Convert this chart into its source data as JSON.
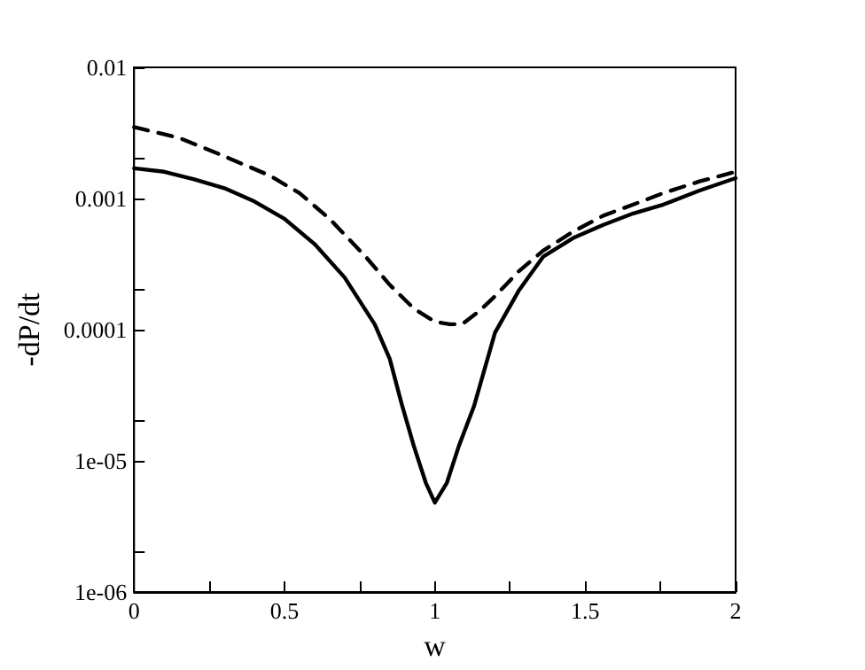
{
  "chart_data": {
    "type": "line",
    "xlabel": "w",
    "ylabel": "-dP/dt",
    "log": "y",
    "marker": "none",
    "xlim": [
      0,
      2
    ],
    "ylim": [
      1e-06,
      0.01
    ],
    "xticks": [
      0,
      {
        "value": 0.25,
        "label": null
      },
      0.5,
      {
        "value": 0.75,
        "label": null
      },
      1,
      {
        "value": 1.25,
        "label": null
      },
      1.5,
      {
        "value": 1.75,
        "label": null
      },
      2
    ],
    "yticks": [
      {
        "value": 1e-06,
        "label": "1e-06"
      },
      {
        "value": 2e-06,
        "label": null
      },
      {
        "value": 1e-05,
        "label": "1e-05"
      },
      {
        "value": 2e-05,
        "label": null
      },
      0.0001,
      {
        "value": 0.0002,
        "label": null
      },
      0.001,
      {
        "value": 0.002,
        "label": null
      },
      0.01
    ],
    "series": [
      {
        "color": "#000000",
        "line_style": "solid",
        "x": [
          0,
          0.1,
          0.2,
          0.3,
          0.4,
          0.5,
          0.6,
          0.7,
          0.8,
          0.85,
          0.89,
          0.93,
          0.97,
          1.0,
          1.04,
          1.08,
          1.13,
          1.2,
          1.28,
          1.36,
          1.46,
          1.56,
          1.66,
          1.76,
          1.88,
          2.0
        ],
        "values": [
          0.0017,
          0.0016,
          0.0014,
          0.0012,
          0.00095,
          0.0007,
          0.00045,
          0.00025,
          0.00011,
          6e-05,
          2.7e-05,
          1.3e-05,
          6.8e-06,
          4.8e-06,
          6.8e-06,
          1.3e-05,
          2.6e-05,
          9.5e-05,
          0.0002,
          0.00036,
          0.0005,
          0.00063,
          0.00077,
          0.0009,
          0.00115,
          0.00143
        ]
      },
      {
        "color": "#000000",
        "line_style": "dashed",
        "x": [
          0,
          0.15,
          0.3,
          0.45,
          0.55,
          0.65,
          0.77,
          0.85,
          0.93,
          1.0,
          1.05,
          1.09,
          1.15,
          1.2,
          1.28,
          1.36,
          1.46,
          1.56,
          1.66,
          1.76,
          1.88,
          2.0
        ],
        "values": [
          0.0035,
          0.0029,
          0.0021,
          0.0015,
          0.0011,
          0.0007,
          0.00036,
          0.00022,
          0.000145,
          0.000115,
          0.00011,
          0.00011,
          0.00014,
          0.00018,
          0.00028,
          0.0004,
          0.00056,
          0.00074,
          0.0009,
          0.0011,
          0.00135,
          0.0016
        ]
      }
    ]
  }
}
